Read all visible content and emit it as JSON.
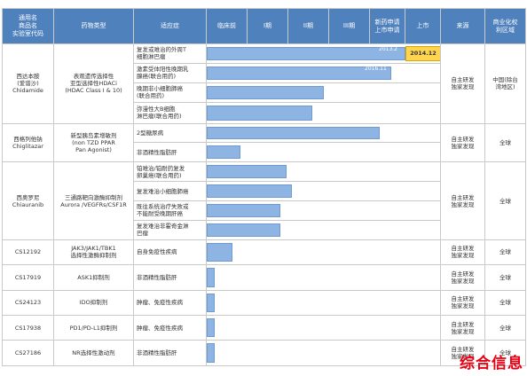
{
  "headers": {
    "drug": "通用名\n商品名\n实验室代码",
    "type": "药物类型",
    "indication": "适应症",
    "preclinical": "临床前",
    "phase1": "I期",
    "phase2": "II期",
    "phase3": "III期",
    "nda": "新药申请\n上市申请",
    "launch": "上市",
    "source": "来源",
    "rights": "商业化权\n利区域"
  },
  "drugs": [
    {
      "name": "西达本胺\n(爱谱沙)\nChidamide",
      "type": "表观遗传选择性\n亚型选择性HDACi\n(HDAC Class I & 10)",
      "source": "自主研发\n独家发现",
      "rights": "中国(除台\n湾地区)",
      "indications": [
        {
          "text": "复发或难治的外周T\n细胞淋巴瘤",
          "stage": 1.0,
          "date": "2013.2",
          "launch": "2014.12"
        },
        {
          "text": "激素受体阳性晚期乳\n腺癌(联合用药)",
          "stage": 0.93,
          "date": "2016.11"
        },
        {
          "text": "晚期非小细胞肺癌\n(联合用药)",
          "stage": 0.59
        },
        {
          "text": "弥漫性大B细胞\n淋巴瘤(联合用药)",
          "stage": 0.53
        }
      ]
    },
    {
      "name": "西格列他钠\nChiglitazar",
      "type": "新型胰岛素增敏剂\n(non TZD PPAR\nPan Agonist)",
      "source": "自主研发\n独家发现",
      "rights": "全球",
      "indications": [
        {
          "text": "2型糖尿病",
          "stage": 0.87
        },
        {
          "text": "非酒精性脂肪肝",
          "stage": 0.17
        }
      ]
    },
    {
      "name": "西奥罗尼\nChiauranib",
      "type": "三通路靶向激酶抑制剂\nAurora /VEGFRs/CSF1R",
      "source": "自主研发\n独家发现",
      "rights": "全球",
      "indications": [
        {
          "text": "铂难治/铂耐药复发\n卵巢癌(联合用药)",
          "stage": 0.4
        },
        {
          "text": "复发难治小细胞肺癌",
          "stage": 0.43
        },
        {
          "text": "既往系统治疗失败或\n不能耐受晚期肝癌",
          "stage": 0.37
        },
        {
          "text": "复发难治非霍奇金淋\n巴瘤",
          "stage": 0.37
        }
      ]
    },
    {
      "name": "CS12192",
      "type": "JAK3/JAK1/TBK1\n选择性激酶抑制剂",
      "source": "自主研发\n独家发现",
      "rights": "全球",
      "indications": [
        {
          "text": "自身免疫性疾病",
          "stage": 0.13
        }
      ]
    },
    {
      "name": "CS17919",
      "type": "ASK1抑制剂",
      "source": "自主研发\n独家发现",
      "rights": "全球",
      "indications": [
        {
          "text": "非酒精性脂肪肝",
          "stage": 0.04
        }
      ]
    },
    {
      "name": "CS24123",
      "type": "IDO抑制剂",
      "source": "自主研发\n独家发现",
      "rights": "全球",
      "indications": [
        {
          "text": "肿瘤、免疫性疾病",
          "stage": 0.04
        }
      ]
    },
    {
      "name": "CS17938",
      "type": "PD1/PD-L1抑制剂",
      "source": "自主研发\n独家发现",
      "rights": "全球",
      "indications": [
        {
          "text": "肿瘤、免疫性疾病",
          "stage": 0.04
        }
      ]
    },
    {
      "name": "CS27186",
      "type": "NR选择性激动剂",
      "source": "自主研发\n独家发现",
      "rights": "全球",
      "indications": [
        {
          "text": "非酒精性脂肪肝",
          "stage": 0.04
        }
      ]
    }
  ],
  "colors": {
    "header_bg": "#4f81bd",
    "bar": "#8eb4e3",
    "launch": "#ffd54f",
    "stamp": "#e60012"
  },
  "watermark": "综合信息"
}
